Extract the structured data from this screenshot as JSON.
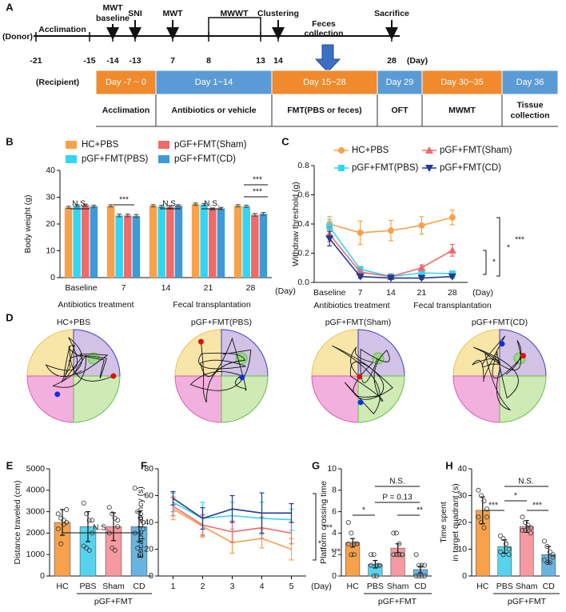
{
  "timeline": {
    "panel": "A",
    "donor": "(Donor)",
    "recipient": "(Recipient)",
    "day_unit": "(Day)",
    "days": [
      "-21",
      "-15",
      "-14",
      "-13",
      "7",
      "8",
      "13",
      "14",
      "28"
    ],
    "events": [
      {
        "label": [
          "Acclimation"
        ]
      },
      {
        "label": [
          "MWT",
          "baseline"
        ]
      },
      {
        "label": [
          "SNI"
        ]
      },
      {
        "label": [
          "MWT"
        ]
      },
      {
        "label": [
          "MWWT"
        ]
      },
      {
        "label": [
          "Clustering"
        ]
      },
      {
        "label": [
          "Feces",
          "collection"
        ]
      },
      {
        "label": [
          "Sacrifice"
        ]
      }
    ],
    "recipient_phases": [
      {
        "day": "Day -7 ~ 0",
        "task": [
          "Acclimation"
        ]
      },
      {
        "day": "Day 1~14",
        "task": [
          "Antibiotics or vehicle"
        ]
      },
      {
        "day": "Day 15~28",
        "task": [
          "FMT(PBS or feces)"
        ]
      },
      {
        "day": "Day 29",
        "task": [
          "OFT"
        ]
      },
      {
        "day": "Day 30~35",
        "task": [
          "MWMT"
        ]
      },
      {
        "day": "Day 36",
        "task": [
          "Tissue",
          "collection"
        ]
      }
    ]
  },
  "maze": {
    "panel": "D",
    "titles": [
      "HC+PBS",
      "pGF+FMT(PBS)",
      "pGF+FMT(Sham)",
      "pGF+FMT(CD)"
    ]
  },
  "chart_data": [
    {
      "type": "bar",
      "panel": "B",
      "ylabel": "Body weight (g)",
      "xlabel": "(Day)",
      "categories": [
        "Baseline",
        "7",
        "14",
        "21",
        "28"
      ],
      "group_labels": [
        "Antibiotics treatment",
        "Fecal transplantation"
      ],
      "ylim": [
        0,
        40
      ],
      "yticks": [
        0,
        10,
        20,
        30,
        40
      ],
      "series": [
        {
          "name": "HC+PBS",
          "color": "#f7a24b",
          "values": [
            26.2,
            26.8,
            26.8,
            27.4,
            26.8
          ],
          "errors": [
            0.4,
            0.4,
            0.4,
            0.4,
            0.4
          ]
        },
        {
          "name": "pGF+FMT(PBS)",
          "color": "#33d6f2",
          "values": [
            26.8,
            23.2,
            26.6,
            27.2,
            26.6
          ],
          "errors": [
            0.4,
            0.5,
            0.4,
            0.4,
            0.4
          ]
        },
        {
          "name": "pGF+FMT(Sham)",
          "color": "#f06a6a",
          "values": [
            27,
            23.2,
            26.4,
            25.6,
            23.4
          ],
          "errors": [
            0.4,
            0.5,
            0.4,
            0.4,
            0.5
          ]
        },
        {
          "name": "pGF+FMT(CD)",
          "color": "#3d9ad6",
          "values": [
            26.6,
            23,
            26.8,
            25.8,
            23.8
          ],
          "errors": [
            0.4,
            0.5,
            0.4,
            0.4,
            0.5
          ]
        }
      ],
      "annotations": [
        "N.S.",
        "***",
        "N.S.",
        "N.S.",
        "***",
        "***"
      ]
    },
    {
      "type": "line",
      "panel": "C",
      "ylabel": "Withdraw threshold (g)",
      "xlabel": "(Day)",
      "categories": [
        "Baseline",
        "7",
        "14",
        "21",
        "28"
      ],
      "group_labels": [
        "Antibiotics treatment",
        "Fecal transplantation"
      ],
      "ylim": [
        0,
        0.8
      ],
      "yticks": [
        {
          "value": 0,
          "label": "0.0"
        },
        0.2,
        0.4,
        0.6,
        0.8
      ],
      "series": [
        {
          "name": "HC+PBS",
          "color": "#f7a24b",
          "marker": "circle",
          "values": [
            0.4,
            0.34,
            0.355,
            0.39,
            0.445
          ],
          "errors": [
            0.05,
            0.08,
            0.07,
            0.06,
            0.05
          ]
        },
        {
          "name": "pGF+FMT(PBS)",
          "color": "#33d6f2",
          "marker": "square",
          "values": [
            0.38,
            0.09,
            0.04,
            0.065,
            0.06
          ],
          "errors": [
            0.05,
            0.02,
            0.01,
            0.015,
            0.01
          ]
        },
        {
          "name": "pGF+FMT(Sham)",
          "color": "#f06a6a",
          "marker": "triangle",
          "values": [
            0.33,
            0.07,
            0.04,
            0.1,
            0.22
          ],
          "errors": [
            0.05,
            0.02,
            0.01,
            0.02,
            0.04
          ]
        },
        {
          "name": "pGF+FMT(CD)",
          "color": "#1f3a93",
          "marker": "triangle-down",
          "values": [
            0.3,
            0.04,
            0.03,
            0.03,
            0.04
          ],
          "errors": [
            0.05,
            0.01,
            0.01,
            0.01,
            0.01
          ]
        }
      ],
      "annotations": [
        "***",
        "*",
        "*"
      ]
    },
    {
      "type": "bar",
      "panel": "E",
      "ylabel": "Distance traveled (cm)",
      "categories": [
        "HC",
        "PBS",
        "Sham",
        "CD"
      ],
      "group_labels": [
        "pGF+FMT"
      ],
      "ylim": [
        0,
        5000
      ],
      "yticks": [
        0,
        1000,
        2000,
        3000,
        4000,
        5000
      ],
      "values": [
        2500,
        2300,
        2300,
        2300
      ],
      "errors": [
        600,
        700,
        650,
        700
      ],
      "colors": [
        "#f7a24b",
        "#58d3ee",
        "#f59aa0",
        "#67b5e0"
      ],
      "points": [
        [
          2900,
          2700,
          2600,
          3100,
          2200,
          1500,
          2400,
          2500
        ],
        [
          3400,
          2900,
          2600,
          2000,
          1400,
          1300,
          1200,
          2600
        ],
        [
          3200,
          2900,
          2700,
          2300,
          2000,
          1300,
          1200,
          2600
        ],
        [
          4100,
          3000,
          2700,
          2500,
          2000,
          1300,
          1000,
          2200
        ]
      ],
      "annotations": [
        "N.S."
      ]
    },
    {
      "type": "line",
      "panel": "F",
      "ylabel": "Escape Latency (s)",
      "xlabel": "(Day)",
      "x": [
        1,
        2,
        3,
        4,
        5
      ],
      "xlim": [
        0.5,
        5.5
      ],
      "xticks": [
        1,
        2,
        3,
        4,
        5
      ],
      "ylim": [
        0,
        80
      ],
      "yticks": [
        0,
        20,
        40,
        60,
        80
      ],
      "series": [
        {
          "name": "HC+PBS",
          "color": "#f7a24b",
          "values": [
            50,
            37,
            25,
            28,
            20
          ],
          "errors": [
            8,
            8,
            8,
            7,
            8
          ]
        },
        {
          "name": "pGF+FMT(PBS)",
          "color": "#33d6f2",
          "values": [
            55,
            43,
            45,
            43,
            42
          ],
          "errors": [
            7,
            12,
            10,
            12,
            8
          ]
        },
        {
          "name": "pGF+FMT(Sham)",
          "color": "#f06a6a",
          "values": [
            52,
            38,
            33,
            36,
            32
          ],
          "errors": [
            7,
            8,
            8,
            8,
            8
          ]
        },
        {
          "name": "pGF+FMT(CD)",
          "color": "#1f3a93",
          "values": [
            58,
            43,
            50,
            47,
            47
          ],
          "errors": [
            5,
            8,
            10,
            15,
            7
          ]
        }
      ],
      "annotations": [
        "***",
        "*",
        "***"
      ]
    },
    {
      "type": "bar",
      "panel": "G",
      "ylabel": "Platform crossing time",
      "categories": [
        "HC",
        "PBS",
        "Sham",
        "CD"
      ],
      "group_labels": [
        "pGF+FMT"
      ],
      "ylim": [
        0,
        10
      ],
      "yticks": [
        0,
        2,
        4,
        6,
        8,
        10
      ],
      "values": [
        3.1,
        1.1,
        2.6,
        0.6
      ],
      "errors": [
        0.4,
        0.35,
        0.4,
        0.3
      ],
      "colors": [
        "#f7a24b",
        "#58d3ee",
        "#f59aa0",
        "#67b5e0"
      ],
      "points": [
        [
          5,
          4,
          3,
          3,
          3,
          2,
          2,
          3
        ],
        [
          2,
          2,
          1,
          1,
          1,
          0,
          0,
          1
        ],
        [
          4,
          4,
          3,
          2,
          2,
          2,
          2,
          2
        ],
        [
          2,
          1,
          1,
          0,
          0,
          0,
          0,
          1
        ]
      ],
      "annotations": [
        "*",
        "P = 0.13",
        "**",
        "N.S."
      ]
    },
    {
      "type": "bar",
      "panel": "H",
      "ylabel": [
        "Time spent",
        "in target quadrant (s)"
      ],
      "categories": [
        "HC",
        "PBS",
        "Sham",
        "CD"
      ],
      "group_labels": [
        "pGF+FMT"
      ],
      "ylim": [
        0,
        40
      ],
      "yticks": [
        0,
        10,
        20,
        30,
        40
      ],
      "values": [
        24.5,
        11,
        18.5,
        8
      ],
      "errors": [
        5,
        2.5,
        2.2,
        3
      ],
      "colors": [
        "#f7a24b",
        "#58d3ee",
        "#f59aa0",
        "#67b5e0"
      ],
      "points": [
        [
          32,
          30,
          28,
          25,
          22,
          20,
          18,
          22
        ],
        [
          15,
          14,
          12,
          10,
          9,
          8,
          12,
          8
        ],
        [
          22,
          20,
          19,
          18,
          17,
          17,
          18,
          16
        ],
        [
          13,
          11,
          9,
          7,
          6,
          5,
          5,
          8
        ]
      ],
      "annotations": [
        "***",
        "*",
        "***",
        "N.S."
      ]
    }
  ]
}
